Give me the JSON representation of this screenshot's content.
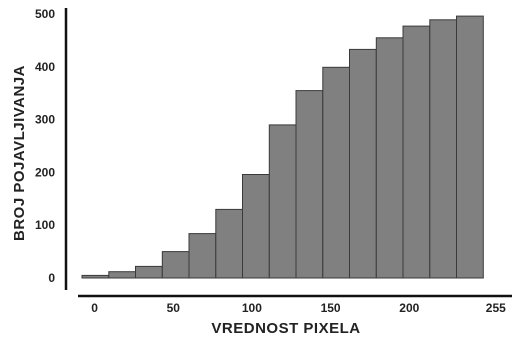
{
  "chart_data": {
    "type": "bar",
    "xlabel": "VREDNOST PIXELA",
    "ylabel": "BROJ POJAVLJIVANJA",
    "ylim": [
      0,
      500
    ],
    "yticks": [
      0,
      100,
      200,
      300,
      400,
      500
    ],
    "xticks": [
      0,
      50,
      100,
      150,
      200,
      255
    ],
    "xlim": [
      -8,
      264
    ],
    "bin_width": 17,
    "grid": false,
    "bar_color": "#808080",
    "bar_edge_color": "#3a3a3a",
    "bins": [
      {
        "x_start": -8,
        "value": 5
      },
      {
        "x_start": 9,
        "value": 12
      },
      {
        "x_start": 26,
        "value": 22
      },
      {
        "x_start": 43,
        "value": 50
      },
      {
        "x_start": 60,
        "value": 84
      },
      {
        "x_start": 77,
        "value": 130
      },
      {
        "x_start": 94,
        "value": 196
      },
      {
        "x_start": 111,
        "value": 290
      },
      {
        "x_start": 128,
        "value": 355
      },
      {
        "x_start": 145,
        "value": 399
      },
      {
        "x_start": 162,
        "value": 433
      },
      {
        "x_start": 179,
        "value": 455
      },
      {
        "x_start": 196,
        "value": 477
      },
      {
        "x_start": 213,
        "value": 489
      },
      {
        "x_start": 230,
        "value": 496
      }
    ]
  }
}
